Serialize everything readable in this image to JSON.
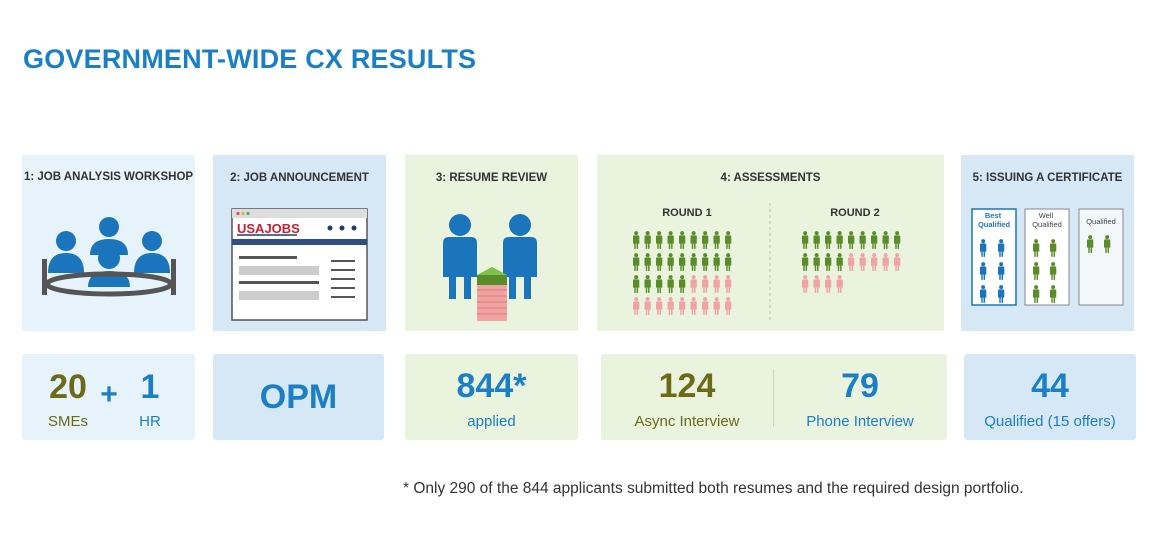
{
  "title": "GOVERNMENT-WIDE CX RESULTS",
  "steps": [
    {
      "label": "1: JOB ANALYSIS WORKSHOP"
    },
    {
      "label": "2: JOB ANNOUNCEMENT",
      "logo": "USAJOBS"
    },
    {
      "label": "3: RESUME REVIEW"
    },
    {
      "label": "4:  ASSESSMENTS",
      "round1": "ROUND 1",
      "round2": "ROUND 2"
    },
    {
      "label": "5: ISSUING A CERTIFICATE",
      "columns": [
        "Best Qualified",
        "Well Qualified",
        "Qualified"
      ]
    }
  ],
  "stats": {
    "workshop": {
      "sme_value": "20",
      "sme_label": "SMEs",
      "plus": "+",
      "hr_value": "1",
      "hr_label": "HR"
    },
    "announcement": {
      "value": "OPM"
    },
    "resume": {
      "value": "844*",
      "label": "applied"
    },
    "assessments": {
      "async_value": "124",
      "async_label": "Async Interview",
      "phone_value": "79",
      "phone_label": "Phone Interview"
    },
    "certificate": {
      "value": "44",
      "label": "Qualified (15 offers)"
    }
  },
  "footnote": "* Only 290 of the 844 applicants submitted both resumes and the required design portfolio.",
  "colors": {
    "accent": "#1a7fc4",
    "olive": "#6d6a17",
    "person_blue": "#1b75bc",
    "pass_green": "#5b8c2a",
    "fail_pink": "#f0a3a3"
  }
}
